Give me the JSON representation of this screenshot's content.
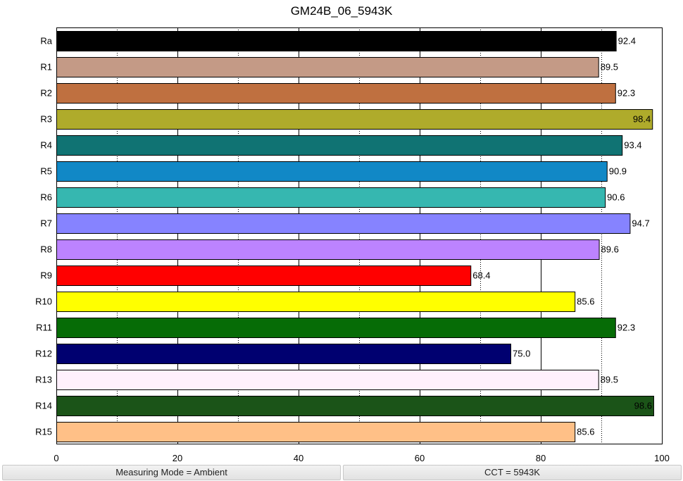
{
  "chart_data": {
    "type": "bar",
    "orientation": "horizontal",
    "title": "GM24B_06_5943K",
    "xlabel": "",
    "ylabel": "",
    "xlim": [
      0,
      100
    ],
    "x_ticks": [
      0,
      20,
      40,
      60,
      80,
      100
    ],
    "grid": "vertical",
    "categories": [
      "Ra",
      "R1",
      "R2",
      "R3",
      "R4",
      "R5",
      "R6",
      "R7",
      "R8",
      "R9",
      "R10",
      "R11",
      "R12",
      "R13",
      "R14",
      "R15"
    ],
    "values": [
      92.4,
      89.5,
      92.3,
      98.4,
      93.4,
      90.9,
      90.6,
      94.7,
      89.6,
      68.4,
      85.6,
      92.3,
      75.0,
      89.5,
      98.6,
      85.6
    ],
    "value_labels": [
      "92.4",
      "89.5",
      "92.3",
      "98.4",
      "93.4",
      "90.9",
      "90.6",
      "94.7",
      "89.6",
      "68.4",
      "85.6",
      "92.3",
      "75.0",
      "89.5",
      "98.6",
      "85.6"
    ],
    "colors": [
      "#000000",
      "#c49a86",
      "#bf7040",
      "#afab2b",
      "#107373",
      "#1188c6",
      "#36b7b0",
      "#8683ff",
      "#bc83ff",
      "#ff0000",
      "#ffff00",
      "#066c06",
      "#000070",
      "#fff0fc",
      "#1b5418",
      "#ffc087"
    ]
  },
  "status": {
    "measuring_mode": "Measuring Mode = Ambient",
    "cct": "CCT = 5943K"
  }
}
